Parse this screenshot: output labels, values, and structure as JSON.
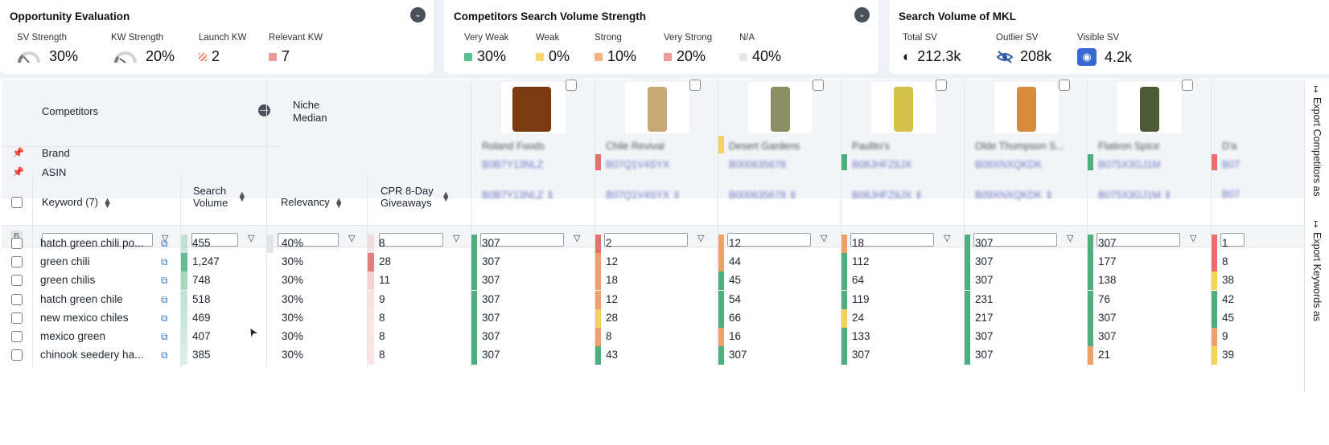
{
  "opportunity": {
    "title": "Opportunity Evaluation",
    "metrics": [
      {
        "label": "SV Strength",
        "value": "30%",
        "icon": "gauge-icon"
      },
      {
        "label": "KW Strength",
        "value": "20%",
        "icon": "gauge-icon"
      },
      {
        "label": "Launch KW",
        "value": "2",
        "icon": "hatch-swatch-icon",
        "color": "#f2a37a"
      },
      {
        "label": "Relevant KW",
        "value": "7",
        "icon": "swatch-icon",
        "color": "#ef9a9a"
      }
    ]
  },
  "competitors_sv": {
    "title": "Competitors Search Volume Strength",
    "metrics": [
      {
        "label": "Very Weak",
        "value": "30%",
        "color": "#5cbf8f"
      },
      {
        "label": "Weak",
        "value": "0%",
        "color": "#f5d76a"
      },
      {
        "label": "Strong",
        "value": "10%",
        "color": "#f3b184"
      },
      {
        "label": "Very Strong",
        "value": "20%",
        "color": "#ef9a9a"
      },
      {
        "label": "N/A",
        "value": "40%",
        "color": "#e5e7ea"
      }
    ]
  },
  "mkl": {
    "title": "Search Volume of MKL",
    "metrics": [
      {
        "label": "Total SV",
        "value": "212.3k",
        "icon": "half-circle-icon"
      },
      {
        "label": "Outlier SV",
        "value": "208k",
        "icon": "eye-slash-icon"
      },
      {
        "label": "Visible SV",
        "value": "4.2k",
        "icon": "eye-icon"
      }
    ]
  },
  "table": {
    "competitors_label": "Competitors",
    "niche_median_label": "Niche\nMedian",
    "brand_label": "Brand",
    "asin_label": "ASIN",
    "columns": {
      "keyword": "Keyword (7)",
      "search_volume": "Search\nVolume",
      "relevancy": "Relevancy",
      "cpr": "CPR 8-Day\nGiveaways"
    },
    "b_label": "B",
    "competitors": [
      {
        "brand": "Roland Foods",
        "asin": "B0B7Y13NLZ",
        "color": "#ffffff"
      },
      {
        "brand": "Chile Revival",
        "asin": "B07Q1V4SYX",
        "color": "#e86f6f"
      },
      {
        "brand": "Desert Gardens",
        "asin": "B000635678",
        "color": "#f5d35b"
      },
      {
        "brand": "Paulito's",
        "asin": "B08JHFZ6JX",
        "color": "#4caf7d"
      },
      {
        "brand": "Olde Thompson S...",
        "asin": "B09XNXQKDK",
        "color": "#ffffff"
      },
      {
        "brand": "Flatiron Spice",
        "asin": "B075X3GJ1M",
        "color": "#4caf7d"
      },
      {
        "brand": "D'a",
        "asin": "B07",
        "color": "#e86f6f"
      }
    ],
    "rows": [
      {
        "keyword": "hatch green chili po...",
        "sv": "455",
        "sv_shade": 0.3,
        "relevancy": "40%",
        "cpr": "8",
        "cpr_shade": 0.15,
        "c": [
          "307",
          "2",
          "12",
          "18",
          "307",
          "307",
          "1"
        ],
        "cc": [
          "#4caf7d",
          "#e86f6f",
          "#f2a06a",
          "#f2a06a",
          "#4caf7d",
          "#4caf7d",
          "#e86f6f"
        ]
      },
      {
        "keyword": "green chili",
        "sv": "1,247",
        "sv_shade": 0.85,
        "relevancy": "30%",
        "cpr": "28",
        "cpr_shade": 0.75,
        "c": [
          "307",
          "12",
          "44",
          "112",
          "307",
          "177",
          "8"
        ],
        "cc": [
          "#4caf7d",
          "#f2a06a",
          "#f2a06a",
          "#4caf7d",
          "#4caf7d",
          "#4caf7d",
          "#e86f6f"
        ]
      },
      {
        "keyword": "green chilis",
        "sv": "748",
        "sv_shade": 0.5,
        "relevancy": "30%",
        "cpr": "11",
        "cpr_shade": 0.25,
        "c": [
          "307",
          "18",
          "45",
          "64",
          "307",
          "138",
          "38"
        ],
        "cc": [
          "#4caf7d",
          "#f2a06a",
          "#4caf7d",
          "#4caf7d",
          "#4caf7d",
          "#4caf7d",
          "#f5d35b"
        ]
      },
      {
        "keyword": "hatch green chile",
        "sv": "518",
        "sv_shade": 0.35,
        "relevancy": "30%",
        "cpr": "9",
        "cpr_shade": 0.18,
        "c": [
          "307",
          "12",
          "54",
          "119",
          "231",
          "76",
          "42"
        ],
        "cc": [
          "#4caf7d",
          "#f2a06a",
          "#4caf7d",
          "#4caf7d",
          "#4caf7d",
          "#4caf7d",
          "#4caf7d"
        ]
      },
      {
        "keyword": "new mexico chiles",
        "sv": "469",
        "sv_shade": 0.3,
        "relevancy": "30%",
        "cpr": "8",
        "cpr_shade": 0.15,
        "c": [
          "307",
          "28",
          "66",
          "24",
          "217",
          "307",
          "45"
        ],
        "cc": [
          "#4caf7d",
          "#f5d35b",
          "#4caf7d",
          "#f5d35b",
          "#4caf7d",
          "#4caf7d",
          "#4caf7d"
        ]
      },
      {
        "keyword": "mexico green",
        "sv": "407",
        "sv_shade": 0.25,
        "relevancy": "30%",
        "cpr": "8",
        "cpr_shade": 0.15,
        "c": [
          "307",
          "8",
          "16",
          "133",
          "307",
          "307",
          "9"
        ],
        "cc": [
          "#4caf7d",
          "#f2a06a",
          "#f2a06a",
          "#4caf7d",
          "#4caf7d",
          "#4caf7d",
          "#f2a06a"
        ]
      },
      {
        "keyword": "chinook seedery ha...",
        "sv": "385",
        "sv_shade": 0.2,
        "relevancy": "30%",
        "cpr": "8",
        "cpr_shade": 0.15,
        "c": [
          "307",
          "43",
          "307",
          "307",
          "307",
          "21",
          "39"
        ],
        "cc": [
          "#4caf7d",
          "#4caf7d",
          "#4caf7d",
          "#4caf7d",
          "#4caf7d",
          "#f2a06a",
          "#f5d35b"
        ]
      }
    ]
  },
  "side": {
    "export_competitors": "Export Competitors as",
    "export_keywords": "Export Keywords as"
  }
}
